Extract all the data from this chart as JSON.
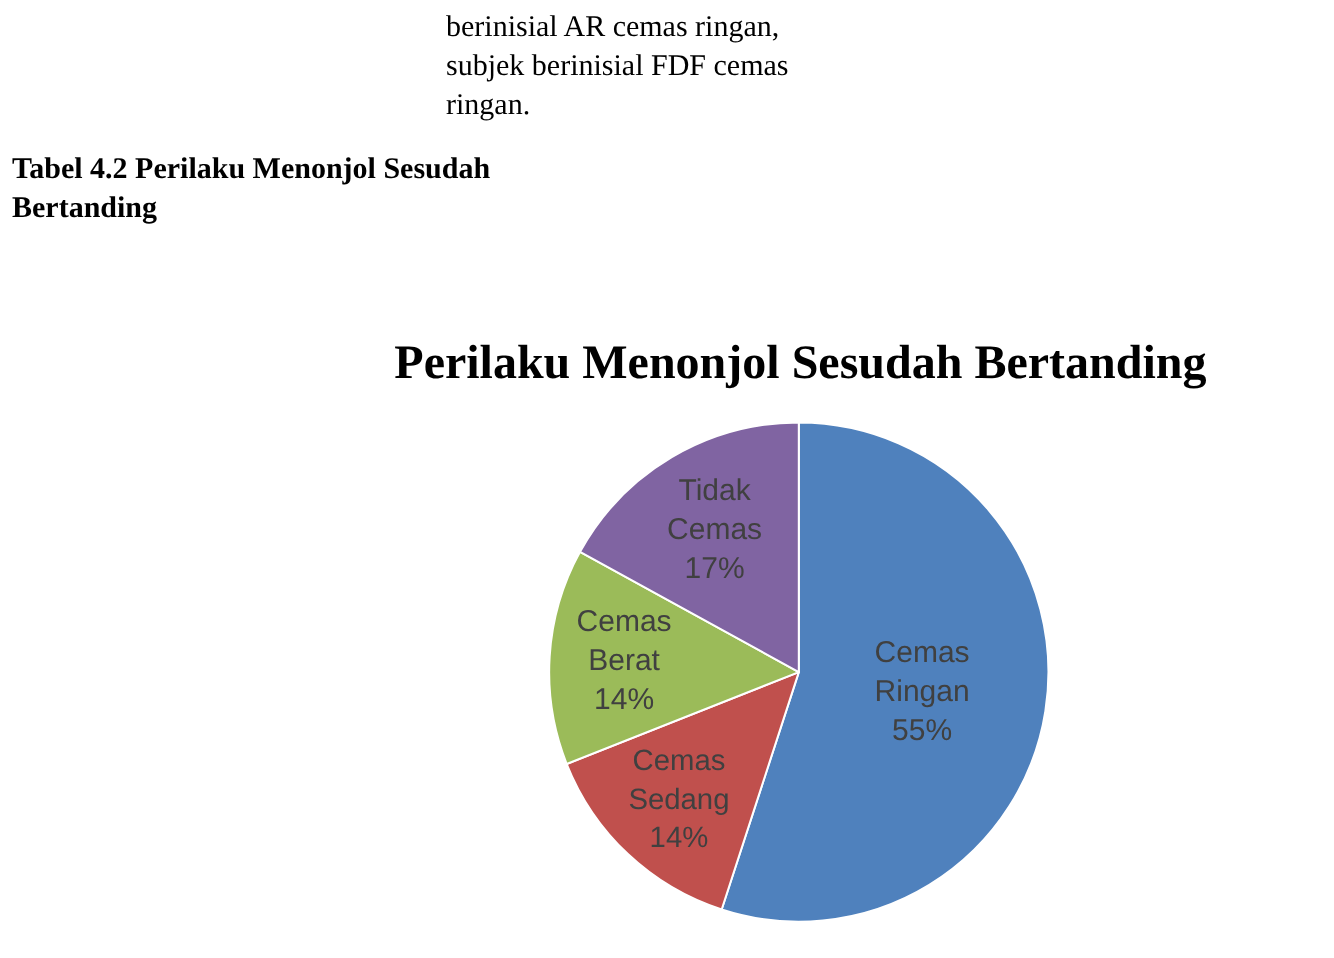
{
  "chart_data": {
    "type": "pie",
    "title": "Perilaku Menonjol Sesudah Bertanding",
    "categories": [
      "Cemas Ringan",
      "Cemas Sedang",
      "Cemas Berat",
      "Tidak Cemas"
    ],
    "values": [
      55,
      14,
      14,
      17
    ],
    "value_labels": [
      "55%",
      "14%",
      "14%",
      "17%"
    ],
    "colors": [
      "#4f81bd",
      "#c0504d",
      "#9bbb59",
      "#8064a2"
    ],
    "annotations": [
      "berinisial AR cemas ringan,\nsubjek berinisial FDF cemas\nringan.",
      "Tabel 4.2 Perilaku Menonjol Sesudah\nBertanding"
    ],
    "legend": false
  }
}
